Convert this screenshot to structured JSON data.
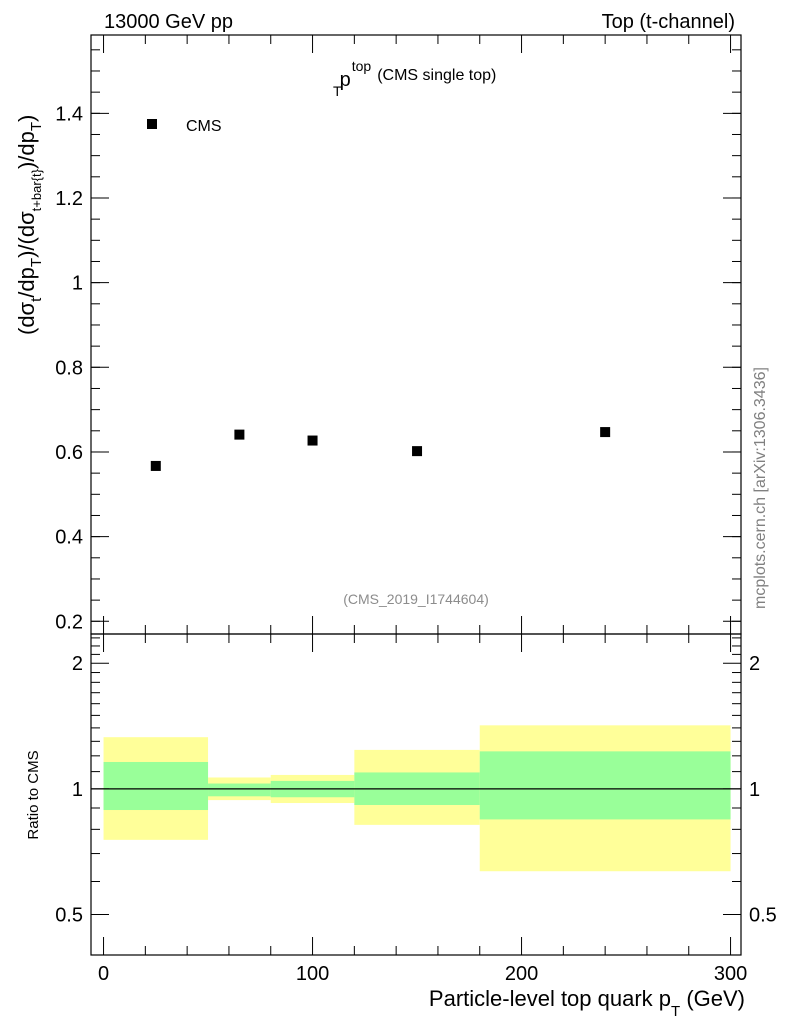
{
  "header": {
    "left": "13000 GeV pp",
    "right": "Top (t-channel)"
  },
  "side_label": "mcplots.cern.ch [arXiv:1306.3436]",
  "chart_data": [
    {
      "type": "scatter",
      "title": "p_T^top (CMS single top)",
      "title_parts": {
        "base": "p",
        "sub": "T",
        "sup": "top",
        "rest": "(CMS single top)"
      },
      "ylabel_parts": [
        "(dσ",
        "t",
        "/dp",
        "T",
        ")/(dσ",
        "t+bar{t}",
        ")/dp",
        "T",
        ")"
      ],
      "analysis_tag": "(CMS_2019_I1744604)",
      "legend": {
        "position": "top-left",
        "entries": [
          "CMS"
        ]
      },
      "xlim": [
        -6,
        305
      ],
      "ylim": [
        0.17,
        1.585
      ],
      "yticks": [
        0.2,
        0.4,
        0.6,
        0.8,
        1,
        1.2,
        1.4
      ],
      "ytick_labels": [
        "0.2",
        "0.4",
        "0.6",
        "0.8",
        "1",
        "1.2",
        "1.4"
      ],
      "series": [
        {
          "name": "CMS",
          "x": [
            25,
            65,
            100,
            150,
            240
          ],
          "y": [
            0.567,
            0.641,
            0.627,
            0.602,
            0.647
          ]
        }
      ]
    },
    {
      "type": "area",
      "ylabel": "Ratio to CMS",
      "xlabel_parts": {
        "base": "Particle-level top quark p",
        "sub": "T",
        "rest": " (GeV)"
      },
      "xlim": [
        -6,
        305
      ],
      "ylim": [
        0.4,
        2.35
      ],
      "log_y": true,
      "yticks": [
        0.5,
        1,
        2
      ],
      "ytick_labels": [
        "0.5",
        "1",
        "2"
      ],
      "xticks": [
        0,
        100,
        200,
        300
      ],
      "xtick_labels": [
        "0",
        "100",
        "200",
        "300"
      ],
      "reference_line": 1,
      "bins": [
        [
          0,
          50
        ],
        [
          50,
          80
        ],
        [
          80,
          120
        ],
        [
          120,
          180
        ],
        [
          180,
          300
        ]
      ],
      "inner_band": {
        "color": "#99ff99",
        "low": [
          0.89,
          0.96,
          0.955,
          0.915,
          0.845
        ],
        "high": [
          1.16,
          1.03,
          1.045,
          1.095,
          1.23
        ]
      },
      "outer_band": {
        "color": "#ffff99",
        "low": [
          0.755,
          0.94,
          0.925,
          0.82,
          0.635
        ],
        "high": [
          1.33,
          1.065,
          1.08,
          1.24,
          1.42
        ]
      }
    }
  ]
}
